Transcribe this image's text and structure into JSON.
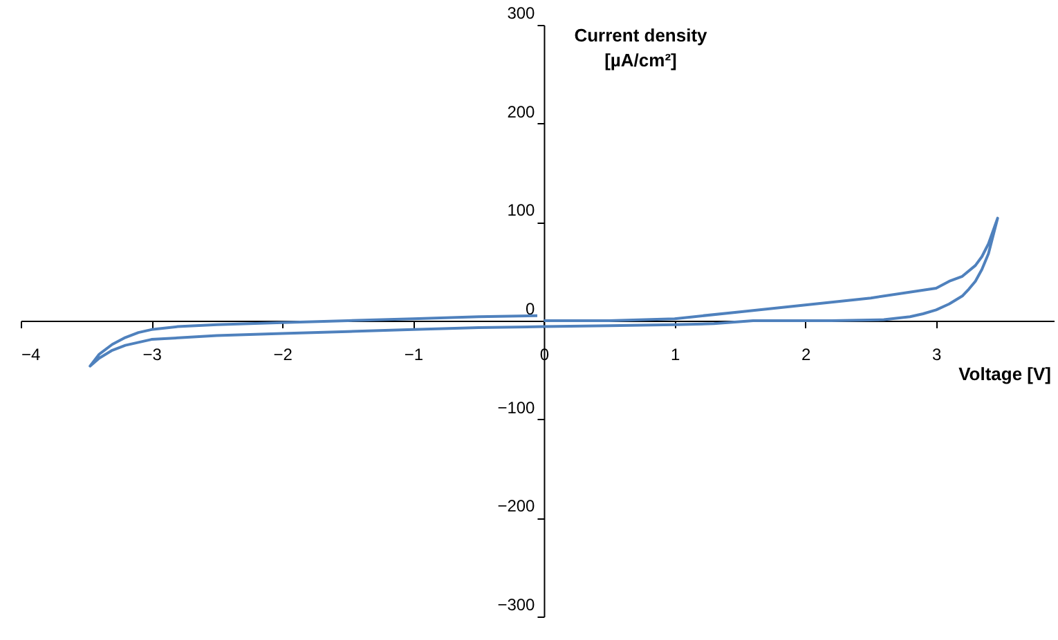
{
  "chart_data": {
    "type": "line",
    "xlabel": "Voltage [V]",
    "ylabel": "Current density\n[µA/cm²]",
    "xlim": [
      -4,
      3.9
    ],
    "xticks": [
      -4,
      -3,
      -2,
      -1,
      0,
      1,
      2,
      3
    ],
    "ylim": [
      -300,
      300
    ],
    "yticks": [
      -300,
      -200,
      -100,
      0,
      100,
      200,
      300
    ],
    "grid": false,
    "marker": "none",
    "line_style": "solid",
    "series": [
      {
        "color": "#4f81bd",
        "x": [
          -0.05,
          -0.5,
          -1,
          -1.5,
          -2,
          -2.5,
          -2.8,
          -3,
          -3.1,
          -3.2,
          -3.3,
          -3.4,
          -3.47,
          -3.4,
          -3.3,
          -3.2,
          -3.1,
          -3,
          -2.5,
          -2,
          -1.5,
          -1,
          -0.5,
          0,
          0.5,
          1,
          1.3,
          1.6,
          2.2,
          2.6,
          2.8,
          2.9,
          3.0,
          3.1,
          3.2,
          3.25,
          3.3,
          3.35,
          3.4,
          3.47,
          3.4,
          3.35,
          3.3,
          3.2,
          3.1,
          3.0,
          2.5,
          2.0,
          1.5,
          1.0,
          0.5,
          0
        ],
        "values": [
          5,
          4,
          2,
          0,
          -2,
          -4,
          -6,
          -9,
          -12,
          -17,
          -24,
          -34,
          -46,
          -38,
          -30,
          -25,
          -22,
          -19,
          -15,
          -13,
          -11,
          -9,
          -7,
          -6,
          -5,
          -4,
          -3,
          0,
          0,
          1,
          4,
          7,
          11,
          17,
          25,
          32,
          40,
          52,
          68,
          104,
          78,
          65,
          56,
          45,
          40,
          33,
          23,
          16,
          9,
          2,
          0,
          0
        ]
      }
    ]
  }
}
